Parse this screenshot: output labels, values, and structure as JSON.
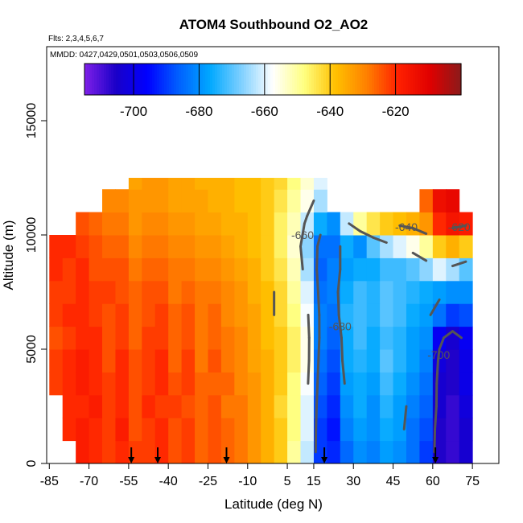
{
  "chart_data": {
    "type": "heatmap",
    "title": "ATOM4 Southbound O2_AO2",
    "subtitle": "Flts: 2,3,4,5,6,7",
    "annotation": "MMDD: 0427,0429,0501,0503,0506,0509",
    "x_label": "Latitude (deg N)",
    "y_label": "Altitude (m)",
    "xlim": [
      -86,
      85
    ],
    "ylim": [
      0,
      18240
    ],
    "xticks": [
      -85,
      -70,
      -55,
      -40,
      -25,
      -10,
      5,
      15,
      30,
      45,
      60,
      75
    ],
    "yticks": [
      0,
      5000,
      10000,
      15000
    ],
    "zlim": [
      -715,
      -600
    ],
    "zticks": [
      -700,
      -680,
      -660,
      -640,
      -620
    ],
    "colors": [
      "#7f20e8",
      "#1a00c8",
      "#0000ff",
      "#0060ff",
      "#00a8ff",
      "#7fd0ff",
      "#ffffff",
      "#ffff80",
      "#ffc000",
      "#ff8000",
      "#ff2000",
      "#e00000",
      "#8b1a1a"
    ],
    "contour_levels": [
      -620,
      -640,
      -660,
      -680,
      -700
    ],
    "contour_color": "#555555",
    "markers": [
      -54,
      -44,
      -18,
      19,
      61
    ],
    "x_bins": [
      -85,
      -80,
      -75,
      -70,
      -65,
      -60,
      -55,
      -50,
      -45,
      -40,
      -35,
      -30,
      -25,
      -20,
      -15,
      -10,
      -5,
      0,
      5,
      10,
      15,
      20,
      25,
      30,
      35,
      40,
      45,
      50,
      55,
      60,
      65,
      70,
      75
    ],
    "y_bins": [
      0,
      1000,
      2000,
      3000,
      4000,
      5000,
      6000,
      7000,
      8000,
      9000,
      10000,
      11000,
      12000,
      12500
    ],
    "z": [
      [
        null,
        null,
        -618,
        -620,
        -622,
        -620,
        -622,
        -622,
        -620,
        -624,
        -622,
        -626,
        -624,
        -626,
        -628,
        -632,
        -636,
        -640,
        -650,
        -662,
        -690,
        -692,
        -685,
        -680,
        -682,
        -678,
        -680,
        -684,
        -690,
        -706,
        -708,
        -704
      ],
      [
        null,
        -620,
        -618,
        -620,
        -622,
        -618,
        -624,
        -622,
        -620,
        -624,
        -622,
        -626,
        -624,
        -626,
        -628,
        -632,
        -636,
        -640,
        -648,
        -660,
        -690,
        -694,
        -682,
        -678,
        -680,
        -676,
        -678,
        -684,
        -688,
        -706,
        -708,
        -704
      ],
      [
        null,
        -620,
        -620,
        -618,
        -622,
        -620,
        -624,
        -620,
        -622,
        -622,
        -624,
        -626,
        -624,
        -628,
        -628,
        -632,
        -636,
        -642,
        -648,
        -660,
        -688,
        -692,
        -680,
        -676,
        -680,
        -674,
        -678,
        -682,
        -686,
        -704,
        -708,
        -702
      ],
      [
        -622,
        -620,
        -618,
        -620,
        -622,
        -620,
        -624,
        -622,
        -620,
        -624,
        -622,
        -626,
        -626,
        -626,
        -630,
        -632,
        -636,
        -640,
        -648,
        -658,
        -686,
        -690,
        -678,
        -676,
        -678,
        -672,
        -676,
        -680,
        -684,
        -704,
        -706,
        -700
      ],
      [
        -622,
        -620,
        -618,
        -620,
        -624,
        -620,
        -624,
        -622,
        -620,
        -626,
        -622,
        -628,
        -624,
        -628,
        -630,
        -634,
        -636,
        -640,
        -646,
        -656,
        -684,
        -688,
        -676,
        -674,
        -676,
        -670,
        -674,
        -678,
        -682,
        -702,
        -706,
        -700
      ],
      [
        -624,
        -622,
        -620,
        -620,
        -624,
        -622,
        -626,
        -622,
        -622,
        -626,
        -624,
        -628,
        -626,
        -628,
        -630,
        -634,
        -638,
        -640,
        -646,
        -656,
        -682,
        -686,
        -676,
        -672,
        -676,
        -672,
        -674,
        -678,
        -680,
        -698,
        -704,
        -698
      ],
      [
        -622,
        -620,
        -620,
        -622,
        -624,
        -622,
        -626,
        -624,
        -622,
        -626,
        -624,
        -628,
        -626,
        -630,
        -632,
        -634,
        -638,
        -642,
        -648,
        -658,
        -682,
        -684,
        -674,
        -672,
        -674,
        -670,
        -672,
        -676,
        -678,
        -684,
        -690,
        -688
      ],
      [
        -622,
        -622,
        -620,
        -622,
        -622,
        -624,
        -626,
        -624,
        -624,
        -628,
        -626,
        -628,
        -628,
        -630,
        -632,
        -636,
        -638,
        -642,
        -650,
        -660,
        -684,
        -682,
        -676,
        -672,
        -674,
        -670,
        -672,
        -674,
        -676,
        -678,
        -680,
        -680
      ],
      [
        -620,
        -622,
        -620,
        -624,
        -624,
        -624,
        -628,
        -626,
        -626,
        -628,
        -628,
        -630,
        -630,
        -632,
        -634,
        -636,
        -640,
        -644,
        -652,
        -664,
        -686,
        -682,
        -678,
        -676,
        -676,
        -672,
        -672,
        -670,
        -666,
        -660,
        -664,
        -670
      ],
      [
        -620,
        -620,
        -622,
        -624,
        -626,
        -626,
        -630,
        -628,
        -628,
        -630,
        -630,
        -632,
        -632,
        -634,
        -636,
        -638,
        -640,
        -646,
        -654,
        -666,
        -684,
        -684,
        -676,
        -680,
        -670,
        -664,
        -660,
        -656,
        -650,
        -640,
        -636,
        -640
      ],
      [
        null,
        null,
        -624,
        -626,
        -628,
        -628,
        -632,
        -630,
        -630,
        -632,
        -632,
        -634,
        -634,
        -636,
        -636,
        -638,
        -640,
        -646,
        -652,
        -662,
        -676,
        -680,
        -662,
        -650,
        -644,
        -640,
        -638,
        -636,
        -632,
        -620,
        -616,
        -618
      ],
      [
        null,
        null,
        null,
        null,
        -630,
        -630,
        -632,
        -632,
        -632,
        -634,
        -634,
        -634,
        -636,
        -636,
        -638,
        -638,
        -640,
        -644,
        -650,
        -656,
        -664,
        null,
        null,
        null,
        null,
        null,
        null,
        null,
        -626,
        -614,
        -612,
        null
      ],
      [
        null,
        null,
        null,
        null,
        null,
        null,
        -634,
        -632,
        -632,
        -634,
        -634,
        -636,
        -636,
        -636,
        -638,
        -638,
        -640,
        -642,
        -648,
        -654,
        -660,
        null,
        null,
        null,
        null,
        null,
        null,
        null,
        null,
        null,
        null,
        null
      ]
    ]
  }
}
